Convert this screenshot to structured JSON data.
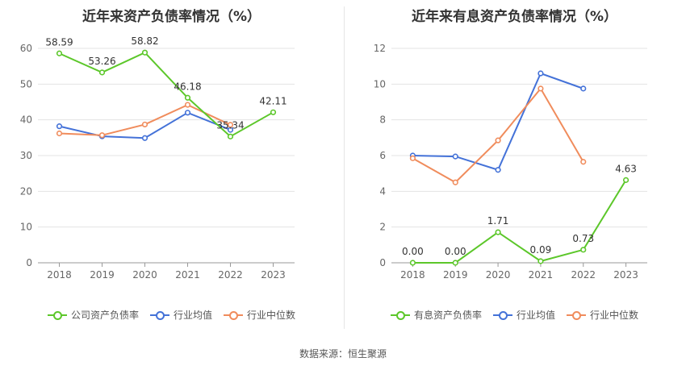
{
  "chart_data": [
    {
      "type": "line",
      "title": "近年来资产负债率情况（%）",
      "categories": [
        "2018",
        "2019",
        "2020",
        "2021",
        "2022",
        "2023"
      ],
      "ylim": [
        0,
        60
      ],
      "yticks": [
        0,
        10,
        20,
        30,
        40,
        50,
        60
      ],
      "series": [
        {
          "name": "公司资产负债率",
          "color": "#5cc72a",
          "values": [
            58.59,
            53.26,
            58.82,
            46.18,
            35.34,
            42.11
          ],
          "labels": [
            "58.59",
            "53.26",
            "58.82",
            "46.18",
            "35.34",
            "42.11"
          ]
        },
        {
          "name": "行业均值",
          "color": "#4472d8",
          "values": [
            38.2,
            35.4,
            34.9,
            42.0,
            37.2,
            null
          ]
        },
        {
          "name": "行业中位数",
          "color": "#f08c5c",
          "values": [
            36.2,
            35.7,
            38.7,
            44.2,
            38.6,
            null
          ]
        }
      ],
      "legend": "bottom",
      "grid": true
    },
    {
      "type": "line",
      "title": "近年来有息资产负债率情况（%）",
      "categories": [
        "2018",
        "2019",
        "2020",
        "2021",
        "2022",
        "2023"
      ],
      "ylim": [
        0,
        12
      ],
      "yticks": [
        0,
        2,
        4,
        6,
        8,
        10,
        12
      ],
      "series": [
        {
          "name": "有息资产负债率",
          "color": "#5cc72a",
          "values": [
            0.0,
            0.0,
            1.71,
            0.09,
            0.73,
            4.63
          ],
          "labels": [
            "0.00",
            "0.00",
            "1.71",
            "0.09",
            "0.73",
            "4.63"
          ]
        },
        {
          "name": "行业均值",
          "color": "#4472d8",
          "values": [
            6.0,
            5.95,
            5.2,
            10.6,
            9.75,
            null
          ]
        },
        {
          "name": "行业中位数",
          "color": "#f08c5c",
          "values": [
            5.85,
            4.5,
            6.85,
            9.75,
            5.65,
            null
          ]
        }
      ],
      "legend": "bottom",
      "grid": true
    }
  ],
  "source": "数据来源：恒生聚源"
}
